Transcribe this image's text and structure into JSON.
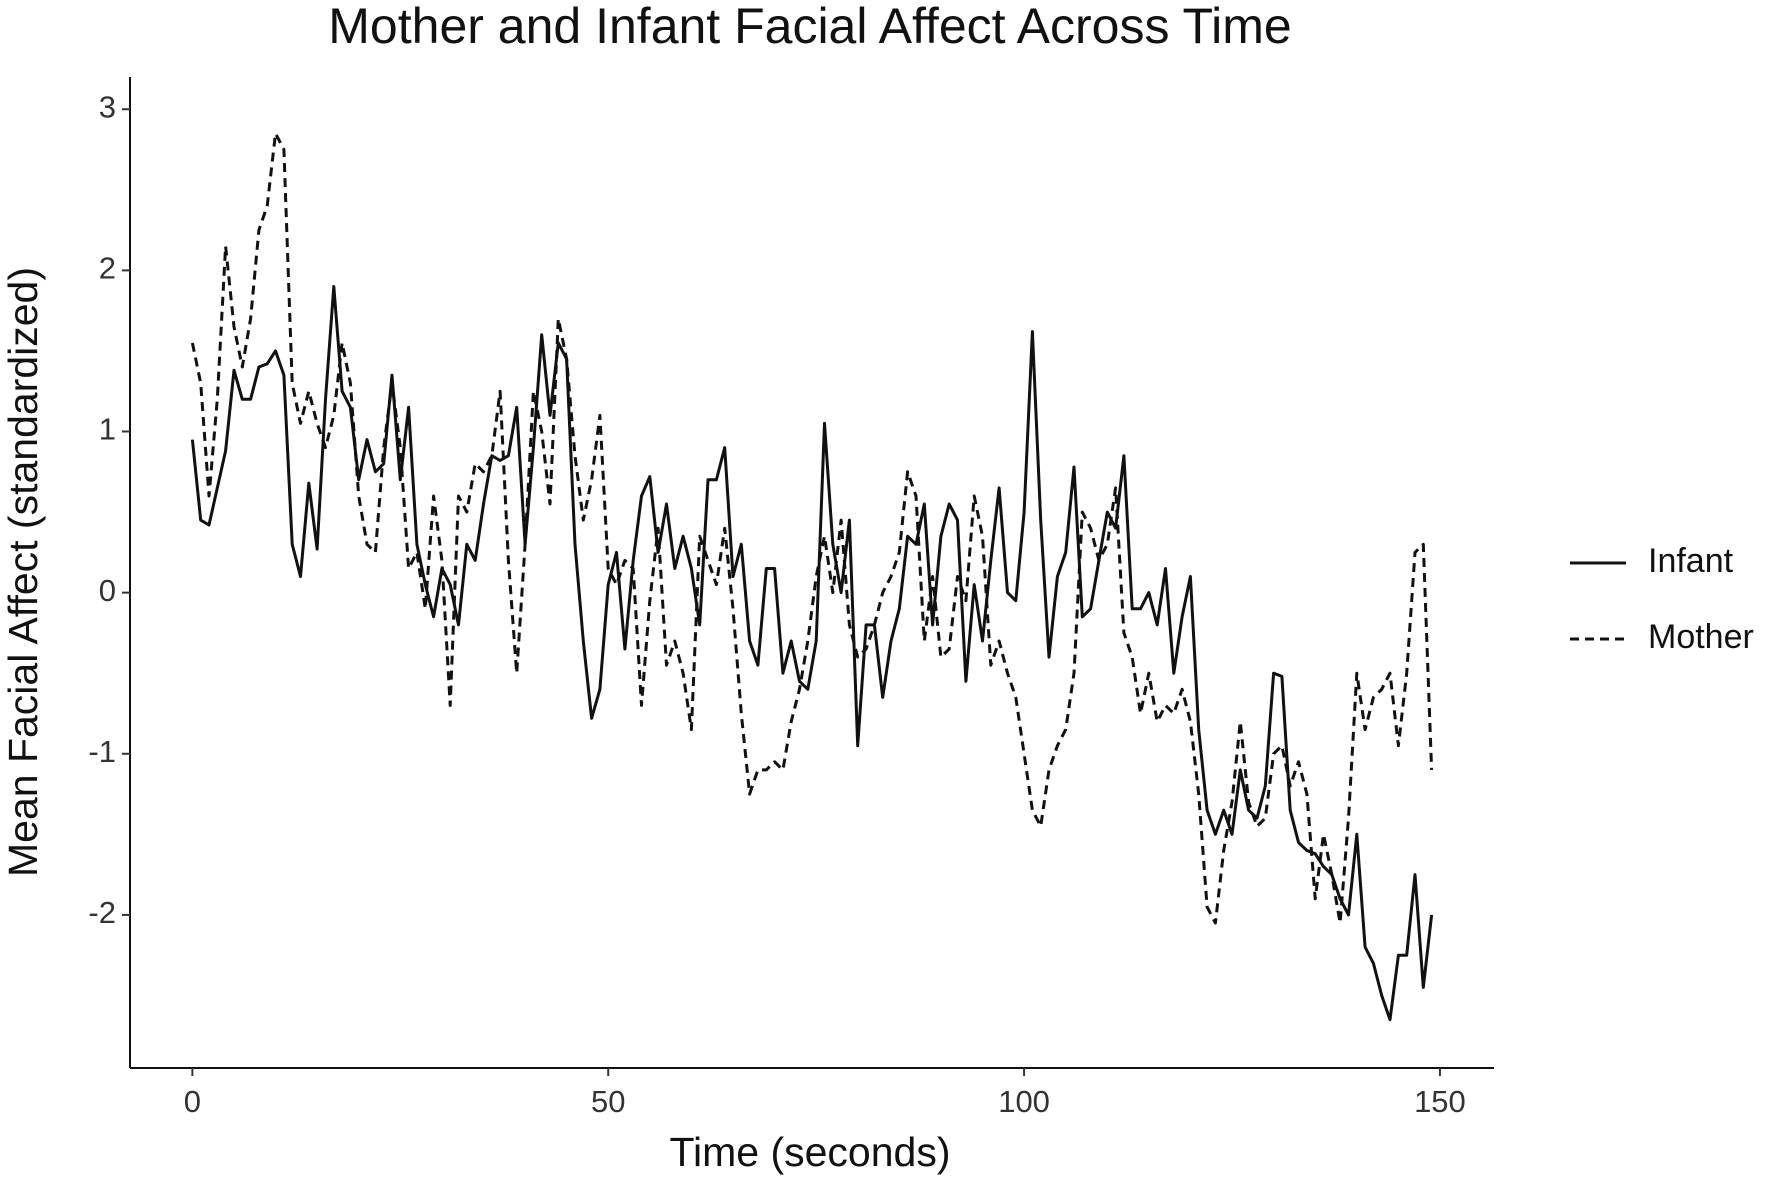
{
  "chart_data": {
    "type": "line",
    "title": "Mother and Infant Facial Affect Across Time",
    "xlabel": "Time (seconds)",
    "ylabel": "Mean Facial Affect (standardized)",
    "x": [
      0,
      1,
      2,
      3,
      4,
      5,
      6,
      7,
      8,
      9,
      10,
      11,
      12,
      13,
      14,
      15,
      16,
      17,
      18,
      19,
      20,
      21,
      22,
      23,
      24,
      25,
      26,
      27,
      28,
      29,
      30,
      31,
      32,
      33,
      34,
      35,
      36,
      37,
      38,
      39,
      40,
      41,
      42,
      43,
      44,
      45,
      46,
      47,
      48,
      49,
      50,
      51,
      52,
      53,
      54,
      55,
      56,
      57,
      58,
      59,
      60,
      61,
      62,
      63,
      64,
      65,
      66,
      67,
      68,
      69,
      70,
      71,
      72,
      73,
      74,
      75,
      76,
      77,
      78,
      79,
      80,
      81,
      82,
      83,
      84,
      85,
      86,
      87,
      88,
      89,
      90,
      91,
      92,
      93,
      94,
      95,
      96,
      97,
      98,
      99,
      100,
      101,
      102,
      103,
      104,
      105,
      106,
      107,
      108,
      109,
      110,
      111,
      112,
      113,
      114,
      115,
      116,
      117,
      118,
      119,
      120,
      121,
      122,
      123,
      124,
      125,
      126,
      127,
      128,
      129,
      130,
      131,
      132,
      133,
      134,
      135,
      136,
      137,
      138,
      139,
      140,
      141,
      142,
      143,
      144,
      145,
      146,
      147,
      148,
      149
    ],
    "series": [
      {
        "name": "Infant",
        "color": "#111111",
        "dash": "solid",
        "values": [
          0.95,
          0.45,
          0.42,
          0.65,
          0.88,
          1.38,
          1.2,
          1.2,
          1.4,
          1.42,
          1.5,
          1.35,
          0.3,
          0.1,
          0.68,
          0.27,
          1.2,
          1.9,
          1.25,
          1.15,
          0.7,
          0.95,
          0.75,
          0.8,
          1.35,
          0.7,
          1.15,
          0.3,
          0.05,
          -0.15,
          0.15,
          0.05,
          -0.2,
          0.3,
          0.2,
          0.55,
          0.85,
          0.82,
          0.85,
          1.15,
          0.3,
          0.9,
          1.6,
          1.1,
          1.55,
          1.45,
          0.3,
          -0.3,
          -0.78,
          -0.6,
          0.05,
          0.25,
          -0.35,
          0.2,
          0.6,
          0.72,
          0.25,
          0.55,
          0.15,
          0.35,
          0.15,
          -0.2,
          0.7,
          0.7,
          0.9,
          0.1,
          0.3,
          -0.3,
          -0.45,
          0.15,
          0.15,
          -0.5,
          -0.3,
          -0.55,
          -0.6,
          -0.3,
          1.05,
          0.3,
          0.0,
          0.45,
          -0.95,
          -0.2,
          -0.2,
          -0.65,
          -0.3,
          -0.1,
          0.35,
          0.3,
          0.55,
          -0.2,
          0.35,
          0.55,
          0.45,
          -0.55,
          0.05,
          -0.3,
          0.2,
          0.65,
          0.0,
          -0.05,
          0.5,
          1.62,
          0.45,
          -0.4,
          0.1,
          0.25,
          0.78,
          -0.15,
          -0.1,
          0.2,
          0.5,
          0.4,
          0.85,
          -0.1,
          -0.1,
          0.0,
          -0.2,
          0.15,
          -0.5,
          -0.15,
          0.1,
          -0.85,
          -1.35,
          -1.5,
          -1.35,
          -1.5,
          -1.1,
          -1.35,
          -1.4,
          -1.2,
          -0.5,
          -0.52,
          -1.35,
          -1.55,
          -1.6,
          -1.62,
          -1.7,
          -1.75,
          -1.9,
          -2.0,
          -1.5,
          -2.2,
          -2.3,
          -2.5,
          -2.65,
          -2.25,
          -2.25,
          -1.75,
          -2.45,
          -2.0
        ]
      },
      {
        "name": "Mother",
        "color": "#111111",
        "dash": "dashed",
        "values": [
          1.55,
          1.3,
          0.6,
          1.2,
          2.15,
          1.65,
          1.4,
          1.7,
          2.25,
          2.4,
          2.85,
          2.75,
          1.3,
          1.05,
          1.25,
          1.05,
          0.9,
          1.1,
          1.55,
          1.3,
          0.6,
          0.3,
          0.25,
          0.9,
          1.3,
          0.9,
          0.15,
          0.25,
          -0.1,
          0.6,
          0.2,
          -0.7,
          0.6,
          0.5,
          0.8,
          0.75,
          0.85,
          1.25,
          0.2,
          -0.5,
          0.3,
          1.25,
          1.0,
          0.55,
          1.7,
          1.45,
          0.85,
          0.45,
          0.7,
          1.1,
          0.15,
          0.05,
          0.2,
          0.15,
          -0.7,
          -0.05,
          0.4,
          -0.45,
          -0.3,
          -0.5,
          -0.85,
          0.35,
          0.2,
          0.05,
          0.4,
          -0.1,
          -0.75,
          -1.25,
          -1.1,
          -1.1,
          -1.05,
          -1.1,
          -0.8,
          -0.6,
          -0.3,
          0.1,
          0.35,
          0.0,
          0.45,
          -0.2,
          -0.4,
          -0.35,
          -0.2,
          0.0,
          0.1,
          0.25,
          0.75,
          0.6,
          -0.3,
          0.1,
          -0.4,
          -0.35,
          0.1,
          -0.05,
          0.6,
          0.35,
          -0.45,
          -0.3,
          -0.5,
          -0.65,
          -1.0,
          -1.35,
          -1.45,
          -1.1,
          -0.95,
          -0.85,
          -0.5,
          0.5,
          0.4,
          0.2,
          0.3,
          0.65,
          -0.25,
          -0.4,
          -0.75,
          -0.5,
          -0.8,
          -0.7,
          -0.75,
          -0.6,
          -0.8,
          -1.25,
          -1.95,
          -2.05,
          -1.6,
          -1.3,
          -0.8,
          -1.3,
          -1.45,
          -1.4,
          -1.0,
          -0.95,
          -1.2,
          -1.05,
          -1.25,
          -1.9,
          -1.5,
          -1.75,
          -2.05,
          -1.4,
          -0.5,
          -0.85,
          -0.65,
          -0.6,
          -0.5,
          -0.95,
          -0.5,
          0.25,
          0.3,
          -1.1
        ]
      }
    ],
    "xlim": [
      -7.5,
      156.5
    ],
    "xticks": [
      0,
      50,
      100,
      150
    ],
    "ylim": [
      -2.95,
      3.2
    ],
    "yticks": [
      -2,
      -1,
      0,
      1,
      2,
      3
    ],
    "legend": "right"
  }
}
